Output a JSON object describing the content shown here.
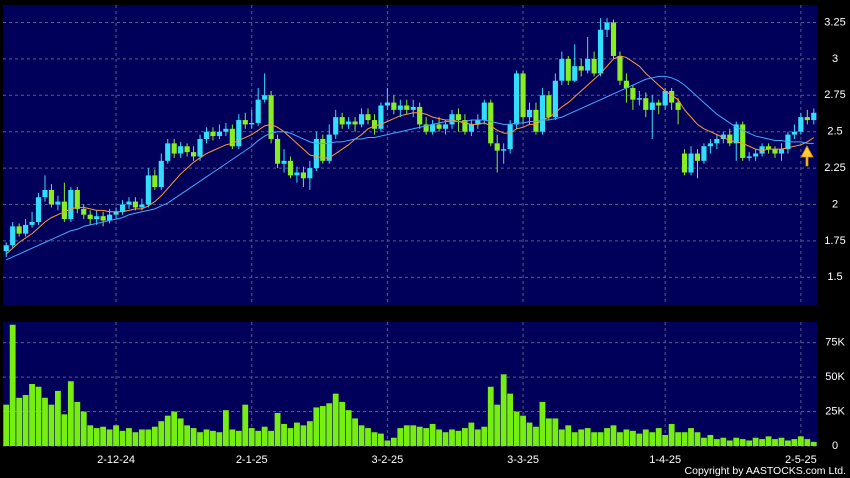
{
  "chart_data": [
    {
      "type": "candlestick",
      "open": [
        1.68,
        1.72,
        1.85,
        1.8,
        1.86,
        1.88,
        2.05,
        2.1,
        2.0,
        2.02,
        1.9,
        2.1,
        1.97,
        1.93,
        1.9,
        1.92,
        1.89,
        1.93,
        1.95,
        2.0,
        2.02,
        1.98,
        2.0,
        2.2,
        2.12,
        2.3,
        2.42,
        2.35,
        2.4,
        2.36,
        2.33,
        2.45,
        2.5,
        2.47,
        2.5,
        2.52,
        2.4,
        2.58,
        2.55,
        2.56,
        2.72,
        2.75,
        2.45,
        2.28,
        2.3,
        2.2,
        2.22,
        2.18,
        2.25,
        2.45,
        2.3,
        2.48,
        2.6,
        2.55,
        2.57,
        2.55,
        2.62,
        2.58,
        2.52,
        2.68,
        2.7,
        2.65,
        2.68,
        2.65,
        2.67,
        2.55,
        2.5,
        2.55,
        2.52,
        2.55,
        2.62,
        2.58,
        2.5,
        2.55,
        2.58,
        2.7,
        2.42,
        2.37,
        2.38,
        2.55,
        2.9,
        2.6,
        2.65,
        2.5,
        2.75,
        2.6,
        2.85,
        3.0,
        2.85,
        2.95,
        2.92,
        3.0,
        2.9,
        3.2,
        3.25,
        3.02,
        2.85,
        2.8,
        2.72,
        2.73,
        2.65,
        2.7,
        2.68,
        2.78,
        2.7,
        2.35,
        2.22,
        2.35,
        2.3,
        2.4,
        2.42,
        2.45,
        2.48,
        2.42,
        2.55,
        2.32,
        2.33,
        2.35,
        2.4,
        2.38,
        2.35,
        2.38,
        2.48,
        2.5,
        2.6,
        2.58
      ],
      "high": [
        1.74,
        1.88,
        1.87,
        1.9,
        1.95,
        2.08,
        2.2,
        2.14,
        2.06,
        2.15,
        2.12,
        2.12,
        2.0,
        1.96,
        1.96,
        1.95,
        1.97,
        1.98,
        2.03,
        2.05,
        2.05,
        2.04,
        2.25,
        2.24,
        2.35,
        2.45,
        2.45,
        2.43,
        2.42,
        2.4,
        2.48,
        2.53,
        2.53,
        2.55,
        2.56,
        2.55,
        2.62,
        2.63,
        2.65,
        2.8,
        2.9,
        2.78,
        2.48,
        2.38,
        2.33,
        2.26,
        2.26,
        2.3,
        2.5,
        2.48,
        2.55,
        2.65,
        2.63,
        2.6,
        2.6,
        2.66,
        2.66,
        2.62,
        2.7,
        2.8,
        2.75,
        2.72,
        2.72,
        2.72,
        2.7,
        2.6,
        2.58,
        2.6,
        2.58,
        2.65,
        2.66,
        2.62,
        2.58,
        2.62,
        2.72,
        2.72,
        2.48,
        2.42,
        2.58,
        2.92,
        2.92,
        2.7,
        2.7,
        2.8,
        2.78,
        2.9,
        3.05,
        3.02,
        3.1,
        3.0,
        3.15,
        3.05,
        3.28,
        3.28,
        3.27,
        3.05,
        2.9,
        2.82,
        2.78,
        2.77,
        2.75,
        2.72,
        2.8,
        2.8,
        2.73,
        2.38,
        2.4,
        2.38,
        2.42,
        2.45,
        2.48,
        2.5,
        2.52,
        2.57,
        2.57,
        2.36,
        2.38,
        2.42,
        2.42,
        2.4,
        2.42,
        2.5,
        2.55,
        2.63,
        2.65,
        2.66
      ],
      "low": [
        1.64,
        1.7,
        1.78,
        1.78,
        1.84,
        1.86,
        2.02,
        1.98,
        1.96,
        1.88,
        1.88,
        1.94,
        1.9,
        1.86,
        1.86,
        1.85,
        1.87,
        1.9,
        1.93,
        1.97,
        1.96,
        1.96,
        1.98,
        2.1,
        2.1,
        2.28,
        2.32,
        2.32,
        2.33,
        2.3,
        2.3,
        2.42,
        2.44,
        2.45,
        2.47,
        2.38,
        2.38,
        2.52,
        2.52,
        2.54,
        2.7,
        2.42,
        2.25,
        2.22,
        2.18,
        2.15,
        2.12,
        2.1,
        2.23,
        2.28,
        2.28,
        2.45,
        2.52,
        2.52,
        2.5,
        2.53,
        2.55,
        2.48,
        2.5,
        2.65,
        2.62,
        2.6,
        2.62,
        2.6,
        2.52,
        2.48,
        2.48,
        2.5,
        2.48,
        2.52,
        2.5,
        2.48,
        2.47,
        2.52,
        2.55,
        2.4,
        2.22,
        2.28,
        2.35,
        2.52,
        2.55,
        2.55,
        2.48,
        2.48,
        2.58,
        2.58,
        2.82,
        2.82,
        2.84,
        2.88,
        2.9,
        2.88,
        2.88,
        3.15,
        3.0,
        2.82,
        2.7,
        2.65,
        2.68,
        2.6,
        2.45,
        2.62,
        2.65,
        2.65,
        2.55,
        2.2,
        2.2,
        2.18,
        2.28,
        2.35,
        2.38,
        2.42,
        2.4,
        2.3,
        2.3,
        2.3,
        2.3,
        2.33,
        2.35,
        2.32,
        2.3,
        2.35,
        2.45,
        2.48,
        2.55,
        2.55
      ],
      "close": [
        1.72,
        1.85,
        1.8,
        1.86,
        1.88,
        2.05,
        2.1,
        2.0,
        2.02,
        1.9,
        2.1,
        1.97,
        1.93,
        1.9,
        1.92,
        1.89,
        1.93,
        1.95,
        2.0,
        2.02,
        1.98,
        2.0,
        2.2,
        2.12,
        2.3,
        2.42,
        2.35,
        2.4,
        2.36,
        2.33,
        2.45,
        2.5,
        2.47,
        2.5,
        2.52,
        2.4,
        2.58,
        2.55,
        2.56,
        2.72,
        2.75,
        2.45,
        2.28,
        2.3,
        2.2,
        2.22,
        2.18,
        2.25,
        2.45,
        2.3,
        2.48,
        2.6,
        2.55,
        2.57,
        2.55,
        2.62,
        2.58,
        2.52,
        2.68,
        2.7,
        2.65,
        2.68,
        2.65,
        2.67,
        2.55,
        2.5,
        2.55,
        2.52,
        2.55,
        2.62,
        2.58,
        2.5,
        2.55,
        2.58,
        2.7,
        2.42,
        2.37,
        2.38,
        2.55,
        2.9,
        2.6,
        2.65,
        2.5,
        2.75,
        2.6,
        2.85,
        3.0,
        2.85,
        2.95,
        2.92,
        3.0,
        2.9,
        3.2,
        3.25,
        3.02,
        2.85,
        2.8,
        2.72,
        2.73,
        2.65,
        2.7,
        2.68,
        2.78,
        2.7,
        2.65,
        2.22,
        2.35,
        2.3,
        2.4,
        2.42,
        2.45,
        2.48,
        2.42,
        2.55,
        2.32,
        2.33,
        2.35,
        2.4,
        2.38,
        2.35,
        2.38,
        2.48,
        2.5,
        2.6,
        2.58,
        2.63
      ],
      "up_color": "#33ddff",
      "down_color": "#88ee22",
      "lines": [
        {
          "color": "#ff9933",
          "values": [
            1.66,
            1.7,
            1.74,
            1.77,
            1.8,
            1.84,
            1.88,
            1.91,
            1.93,
            1.95,
            1.97,
            1.98,
            1.98,
            1.97,
            1.96,
            1.96,
            1.95,
            1.95,
            1.95,
            1.96,
            1.97,
            1.97,
            1.99,
            2.02,
            2.06,
            2.11,
            2.16,
            2.21,
            2.25,
            2.29,
            2.32,
            2.35,
            2.37,
            2.39,
            2.41,
            2.42,
            2.44,
            2.46,
            2.48,
            2.51,
            2.54,
            2.55,
            2.53,
            2.5,
            2.46,
            2.42,
            2.38,
            2.34,
            2.33,
            2.32,
            2.32,
            2.35,
            2.38,
            2.41,
            2.45,
            2.48,
            2.52,
            2.54,
            2.55,
            2.57,
            2.59,
            2.61,
            2.62,
            2.63,
            2.63,
            2.62,
            2.6,
            2.59,
            2.58,
            2.58,
            2.57,
            2.56,
            2.55,
            2.55,
            2.56,
            2.54,
            2.51,
            2.49,
            2.49,
            2.52,
            2.53,
            2.55,
            2.55,
            2.58,
            2.6,
            2.63,
            2.67,
            2.7,
            2.74,
            2.78,
            2.82,
            2.86,
            2.9,
            2.95,
            3.0,
            3.02,
            3.01,
            2.98,
            2.95,
            2.9,
            2.86,
            2.82,
            2.78,
            2.75,
            2.72,
            2.65,
            2.6,
            2.55,
            2.52,
            2.5,
            2.48,
            2.46,
            2.44,
            2.43,
            2.42,
            2.4,
            2.38,
            2.37,
            2.38,
            2.38,
            2.38,
            2.39,
            2.4,
            2.41,
            2.43,
            2.46
          ]
        },
        {
          "color": "#44aaff",
          "values": [
            1.62,
            1.64,
            1.66,
            1.68,
            1.7,
            1.72,
            1.74,
            1.76,
            1.78,
            1.8,
            1.82,
            1.83,
            1.85,
            1.86,
            1.87,
            1.88,
            1.89,
            1.9,
            1.91,
            1.93,
            1.94,
            1.95,
            1.96,
            1.97,
            1.99,
            2.01,
            2.04,
            2.07,
            2.1,
            2.13,
            2.16,
            2.19,
            2.22,
            2.25,
            2.28,
            2.31,
            2.34,
            2.37,
            2.4,
            2.44,
            2.47,
            2.49,
            2.5,
            2.5,
            2.49,
            2.47,
            2.45,
            2.43,
            2.42,
            2.42,
            2.42,
            2.43,
            2.43,
            2.44,
            2.45,
            2.45,
            2.46,
            2.46,
            2.47,
            2.48,
            2.49,
            2.5,
            2.51,
            2.52,
            2.53,
            2.54,
            2.55,
            2.56,
            2.57,
            2.57,
            2.57,
            2.57,
            2.58,
            2.58,
            2.58,
            2.57,
            2.56,
            2.55,
            2.55,
            2.56,
            2.56,
            2.57,
            2.57,
            2.58,
            2.58,
            2.59,
            2.6,
            2.62,
            2.64,
            2.66,
            2.68,
            2.7,
            2.72,
            2.74,
            2.76,
            2.78,
            2.8,
            2.82,
            2.84,
            2.86,
            2.87,
            2.88,
            2.88,
            2.87,
            2.85,
            2.82,
            2.78,
            2.74,
            2.7,
            2.66,
            2.62,
            2.59,
            2.56,
            2.53,
            2.51,
            2.49,
            2.47,
            2.46,
            2.45,
            2.44,
            2.44,
            2.43,
            2.43,
            2.43,
            2.42,
            2.42
          ]
        }
      ],
      "ylim": [
        1.31,
        3.37
      ],
      "yticks": [
        1.5,
        1.75,
        2,
        2.25,
        2.5,
        2.75,
        3,
        3.25
      ],
      "grid": true
    },
    {
      "type": "bar",
      "categories": [
        null,
        null,
        null,
        null,
        null,
        null,
        null,
        null,
        null,
        null,
        null,
        null,
        null,
        null,
        null,
        null,
        null,
        "2-12-24",
        null,
        null,
        null,
        null,
        null,
        null,
        null,
        null,
        null,
        null,
        null,
        null,
        null,
        null,
        null,
        null,
        null,
        null,
        null,
        null,
        "2-1-25",
        null,
        null,
        null,
        null,
        null,
        null,
        null,
        null,
        null,
        null,
        null,
        null,
        null,
        null,
        null,
        null,
        null,
        null,
        null,
        null,
        "3-2-25",
        null,
        null,
        null,
        null,
        null,
        null,
        null,
        null,
        null,
        null,
        null,
        null,
        null,
        null,
        null,
        null,
        null,
        null,
        null,
        null,
        "3-3-25",
        null,
        null,
        null,
        null,
        null,
        null,
        null,
        null,
        null,
        null,
        null,
        null,
        null,
        null,
        null,
        null,
        null,
        null,
        null,
        null,
        null,
        "1-4-25",
        null,
        null,
        null,
        null,
        null,
        null,
        null,
        null,
        null,
        null,
        null,
        null,
        null,
        null,
        null,
        null,
        null,
        null,
        null,
        null,
        "2-5-25",
        null,
        null
      ],
      "values": [
        30000,
        88000,
        35000,
        37000,
        45000,
        43000,
        35000,
        30000,
        40000,
        23000,
        47000,
        32000,
        25000,
        15000,
        13000,
        14000,
        12000,
        15000,
        11000,
        13000,
        10000,
        12000,
        12000,
        14000,
        18000,
        22000,
        25000,
        20000,
        15000,
        13000,
        10000,
        12000,
        11000,
        10000,
        26000,
        12000,
        11000,
        30000,
        13000,
        11000,
        14000,
        11000,
        24000,
        16000,
        13000,
        17000,
        15000,
        18000,
        28000,
        29000,
        31000,
        38000,
        32000,
        26000,
        20000,
        15000,
        13000,
        10000,
        9000,
        4000,
        6000,
        13000,
        15000,
        15000,
        14000,
        13000,
        16000,
        12000,
        10000,
        12000,
        11000,
        13000,
        17000,
        12000,
        14000,
        43000,
        30000,
        52000,
        38000,
        25000,
        22000,
        17000,
        14000,
        32000,
        20000,
        20000,
        12000,
        15000,
        10000,
        12000,
        13000,
        10000,
        10000,
        13000,
        15000,
        10000,
        12000,
        11000,
        9000,
        12000,
        10000,
        13000,
        8000,
        16000,
        10000,
        10000,
        13000,
        10000,
        6000,
        8000,
        5000,
        6000,
        4000,
        6000,
        5000,
        4000,
        6000,
        5000,
        7000,
        5000,
        6000,
        4000,
        5000,
        7000,
        5000,
        3000
      ],
      "color": "#77ee11",
      "ylim": [
        0,
        90000
      ],
      "yticks": [
        0,
        {
          "value": 25000,
          "label": "25K"
        },
        {
          "value": 50000,
          "label": "50K"
        },
        {
          "value": 75000,
          "label": "75K"
        }
      ],
      "grid": true
    }
  ],
  "footer": {
    "copyright": "Copyright by AASTOCKS.com Ltd."
  }
}
